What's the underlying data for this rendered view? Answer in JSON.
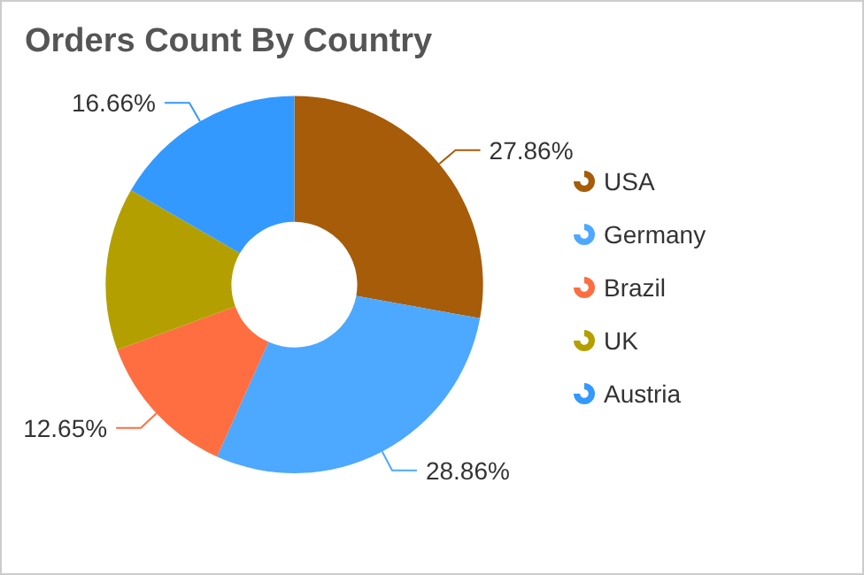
{
  "chart_data": {
    "type": "donut",
    "title": "Orders Count By Country",
    "categories": [
      "USA",
      "Germany",
      "Brazil",
      "UK",
      "Austria"
    ],
    "values": [
      27.86,
      28.86,
      12.65,
      13.97,
      16.66
    ],
    "value_labels": [
      "27.86%",
      "28.86%",
      "12.65%",
      null,
      "16.66%"
    ],
    "colors": [
      "#a65c09",
      "#4da8ff",
      "#ff6e40",
      "#b3a000",
      "#3399ff"
    ],
    "legend": "right"
  }
}
